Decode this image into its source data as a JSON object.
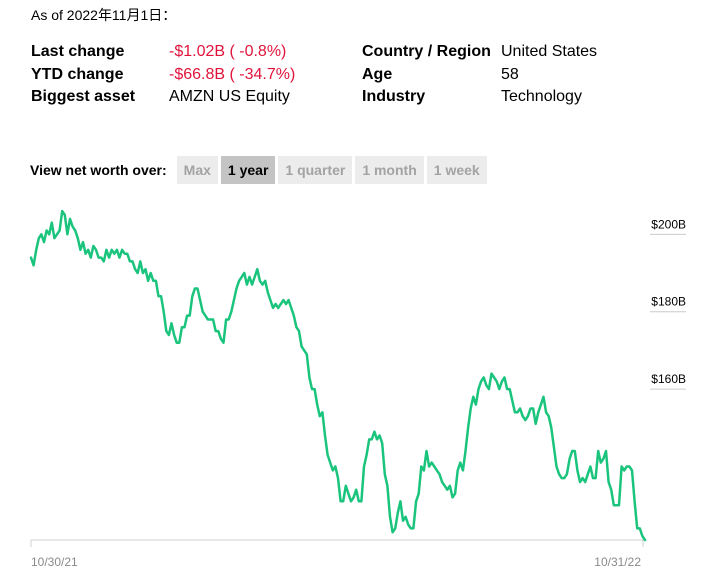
{
  "as_of": "As of 2022年11月1日：",
  "stats_left": [
    {
      "label": "Last change",
      "value": "-$1.02B ( -0.8%)",
      "negative": true
    },
    {
      "label": "YTD change",
      "value": "-$66.8B ( -34.7%)",
      "negative": true
    },
    {
      "label": "Biggest asset",
      "value": "AMZN US Equity",
      "negative": false
    }
  ],
  "stats_right": [
    {
      "label": "Country / Region",
      "value": "United States"
    },
    {
      "label": "Age",
      "value": "58"
    },
    {
      "label": "Industry",
      "value": "Technology"
    }
  ],
  "range_selector": {
    "label": "View net worth over:",
    "options": [
      "Max",
      "1 year",
      "1 quarter",
      "1 month",
      "1 week"
    ],
    "active": "1 year"
  },
  "colors": {
    "line": "#1bc47d",
    "negative": "#e0143c",
    "gridline": "#cccccc"
  },
  "chart_data": {
    "type": "line",
    "x_start_label": "10/30/21",
    "x_end_label": "10/31/22",
    "ylim": [
      121,
      205
    ],
    "ytick_values": [
      200,
      180,
      160
    ],
    "ytick_labels": [
      "$200B",
      "$180B",
      "$160B"
    ],
    "series": [
      {
        "values": [
          194,
          192,
          196,
          199,
          200,
          198,
          201,
          200,
          203,
          199,
          200,
          201,
          206,
          205,
          200,
          204,
          202,
          201,
          199,
          196,
          198,
          195,
          196,
          194,
          197,
          196,
          194,
          194,
          193,
          196,
          194,
          196,
          195,
          196,
          194,
          196,
          195,
          195,
          193,
          193,
          191,
          190,
          193,
          190,
          191,
          188,
          190,
          188,
          188,
          184,
          184,
          180,
          175,
          174,
          177,
          174,
          172,
          172,
          176,
          176,
          179,
          179,
          184,
          186,
          186,
          183,
          180,
          179,
          178,
          178,
          178,
          175,
          175,
          173,
          172,
          178,
          178,
          180,
          183,
          186,
          188,
          189,
          190,
          187,
          189,
          187,
          189,
          191,
          188,
          187,
          188,
          185,
          183,
          181,
          182,
          181,
          182,
          183,
          182,
          183,
          181,
          179,
          176,
          175,
          171,
          170,
          169,
          163,
          160,
          160,
          156,
          153,
          154,
          148,
          143,
          141,
          139,
          140,
          137,
          131,
          131,
          135,
          133,
          131,
          132,
          134,
          131,
          131,
          140,
          143,
          147,
          147,
          149,
          147,
          148,
          146,
          138,
          135,
          127,
          123,
          124,
          128,
          131,
          126,
          127,
          125,
          124,
          124,
          131,
          133,
          140,
          139,
          144,
          140,
          141,
          140,
          139,
          138,
          136,
          135,
          134,
          135,
          132,
          133,
          139,
          141,
          139,
          144,
          150,
          155,
          158,
          156,
          160,
          162,
          163,
          161,
          160,
          164,
          163,
          162,
          160,
          162,
          163,
          160,
          160,
          157,
          154,
          154,
          155,
          153,
          152,
          153,
          155,
          155,
          151,
          154,
          156,
          158,
          154,
          153,
          150,
          145,
          140,
          138,
          137,
          137,
          138,
          142,
          144,
          144,
          139,
          136,
          137,
          136,
          138,
          140,
          137,
          137,
          144,
          141,
          142,
          144,
          136,
          134,
          130,
          130,
          130,
          140,
          139,
          140,
          140,
          139,
          131,
          124,
          124,
          122,
          121
        ]
      }
    ]
  }
}
